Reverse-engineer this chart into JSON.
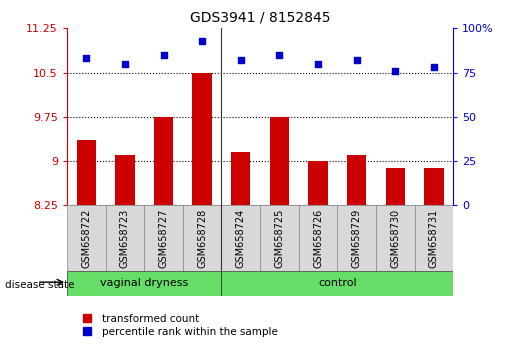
{
  "title": "GDS3941 / 8152845",
  "samples": [
    "GSM658722",
    "GSM658723",
    "GSM658727",
    "GSM658728",
    "GSM658724",
    "GSM658725",
    "GSM658726",
    "GSM658729",
    "GSM658730",
    "GSM658731"
  ],
  "bar_values": [
    9.35,
    9.1,
    9.75,
    10.5,
    9.15,
    9.75,
    9.0,
    9.1,
    8.88,
    8.88
  ],
  "scatter_values": [
    83,
    80,
    85,
    93,
    82,
    85,
    80,
    82,
    76,
    78
  ],
  "ylim_left": [
    8.25,
    11.25
  ],
  "ylim_right": [
    0,
    100
  ],
  "yticks_left": [
    8.25,
    9.0,
    9.75,
    10.5,
    11.25
  ],
  "ytick_labels_left": [
    "8.25",
    "9",
    "9.75",
    "10.5",
    "11.25"
  ],
  "yticks_right": [
    0,
    25,
    50,
    75,
    100
  ],
  "ytick_labels_right": [
    "0",
    "25",
    "50",
    "75",
    "100%"
  ],
  "hlines": [
    10.5,
    9.75,
    9.0
  ],
  "bar_color": "#CC0000",
  "scatter_color": "#0000CC",
  "bar_baseline": 8.25,
  "group_boundary": 4,
  "vd_label": "vaginal dryness",
  "ctrl_label": "control",
  "label_bar": "transformed count",
  "label_scatter": "percentile rank within the sample",
  "disease_state_label": "disease state",
  "cell_color": "#D8D8D8",
  "group_color": "#66DD66",
  "fig_width": 5.15,
  "fig_height": 3.54,
  "dpi": 100
}
